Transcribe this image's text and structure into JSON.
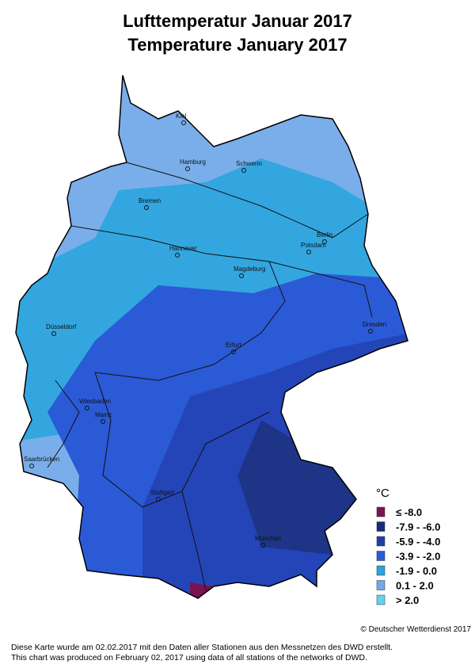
{
  "header": {
    "title_de": "Lufttemperatur Januar 2017",
    "title_en": "Temperature January 2017"
  },
  "cities": [
    {
      "label": "Kiel"
    },
    {
      "label": "Hamburg"
    },
    {
      "label": "Schwerin"
    },
    {
      "label": "Bremen"
    },
    {
      "label": "Berlin"
    },
    {
      "label": "Potsdam"
    },
    {
      "label": "Hannover"
    },
    {
      "label": "Magdeburg"
    },
    {
      "label": "Düsseldorf"
    },
    {
      "label": "Erfurt"
    },
    {
      "label": "Dresden"
    },
    {
      "label": "Wiesbaden"
    },
    {
      "label": "Mainz"
    },
    {
      "label": "Saarbrücken"
    },
    {
      "label": "Stuttgart"
    },
    {
      "label": "München"
    }
  ],
  "legend": {
    "title": "°C",
    "items": [
      {
        "label": "≤  -8.0",
        "color": "#7a1450"
      },
      {
        "label": "-7.9 - -6.0",
        "color": "#1b2a78"
      },
      {
        "label": "-5.9 - -4.0",
        "color": "#203fa6"
      },
      {
        "label": "-3.9 - -2.0",
        "color": "#2b5ad6"
      },
      {
        "label": "-1.9 - 0.0",
        "color": "#2ea3dc"
      },
      {
        "label": "0.1 - 2.0",
        "color": "#72a8ec"
      },
      {
        "label": "> 2.0",
        "color": "#62d2ef"
      }
    ]
  },
  "copyright": "© Deutscher Wetterdienst 2017",
  "footnote_de": "Diese Karte wurde am 02.02.2017 mit den Daten aller Stationen aus den Messnetzen des DWD erstellt.",
  "footnote_en": "This chart was produced on February 02, 2017 using data of all stations of the networks of DWD."
}
